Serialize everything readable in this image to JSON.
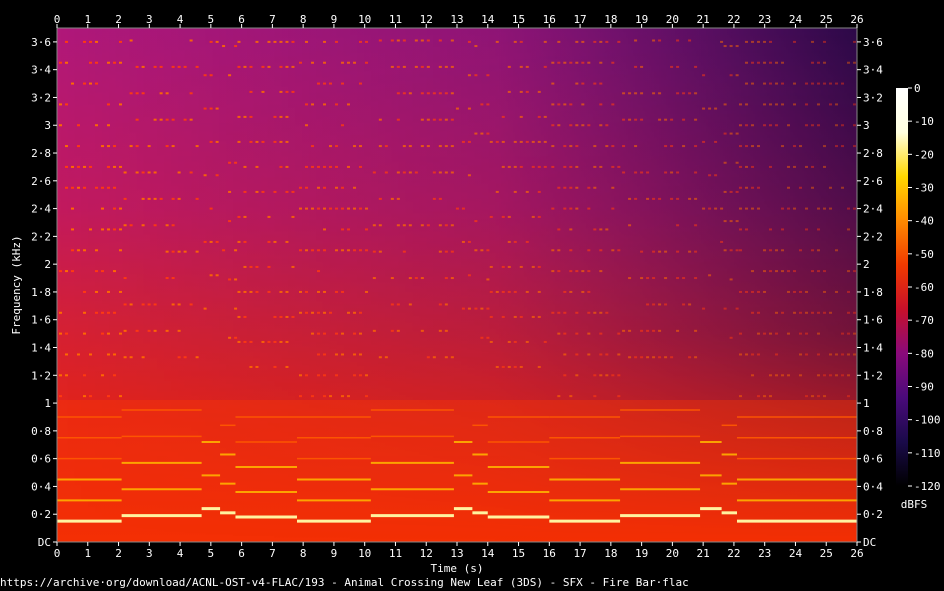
{
  "source_url": "https://archive·org/download/ACNL-OST-v4-FLAC/193 - Animal Crossing New Leaf (3DS) - SFX - Fire Bar·flac",
  "chart_data": {
    "type": "heatmap",
    "xlabel": "Time (s)",
    "ylabel": "Frequency (kHz)",
    "xlim": [
      0,
      26
    ],
    "ylim": [
      0,
      3.7
    ],
    "x_ticks": [
      "0",
      "1",
      "2",
      "3",
      "4",
      "5",
      "6",
      "7",
      "8",
      "9",
      "10",
      "11",
      "12",
      "13",
      "14",
      "15",
      "16",
      "17",
      "18",
      "19",
      "20",
      "21",
      "22",
      "23",
      "24",
      "25",
      "26"
    ],
    "y_ticks": [
      {
        "value": 0,
        "label": "DC"
      },
      {
        "value": 0.2,
        "label": "0·2"
      },
      {
        "value": 0.4,
        "label": "0·4"
      },
      {
        "value": 0.6,
        "label": "0·6"
      },
      {
        "value": 0.8,
        "label": "0·8"
      },
      {
        "value": 1.0,
        "label": "1"
      },
      {
        "value": 1.2,
        "label": "1·2"
      },
      {
        "value": 1.4,
        "label": "1·4"
      },
      {
        "value": 1.6,
        "label": "1·6"
      },
      {
        "value": 1.8,
        "label": "1·8"
      },
      {
        "value": 2.0,
        "label": "2"
      },
      {
        "value": 2.2,
        "label": "2·2"
      },
      {
        "value": 2.4,
        "label": "2·4"
      },
      {
        "value": 2.6,
        "label": "2·6"
      },
      {
        "value": 2.8,
        "label": "2·8"
      },
      {
        "value": 3.0,
        "label": "3"
      },
      {
        "value": 3.2,
        "label": "3·2"
      },
      {
        "value": 3.4,
        "label": "3·4"
      },
      {
        "value": 3.6,
        "label": "3·6"
      }
    ],
    "colorbar": {
      "label": "dBFS",
      "range": [
        -120,
        0
      ],
      "ticks": [
        {
          "value": 0,
          "label": "0"
        },
        {
          "value": -10,
          "label": "-10"
        },
        {
          "value": -20,
          "label": "-20"
        },
        {
          "value": -30,
          "label": "-30"
        },
        {
          "value": -40,
          "label": "-40"
        },
        {
          "value": -50,
          "label": "-50"
        },
        {
          "value": -60,
          "label": "-60"
        },
        {
          "value": -70,
          "label": "-70"
        },
        {
          "value": -80,
          "label": "-80"
        },
        {
          "value": -90,
          "label": "-90"
        },
        {
          "value": -100,
          "label": "-100"
        },
        {
          "value": -110,
          "label": "-110"
        },
        {
          "value": -120,
          "label": "-120"
        }
      ],
      "colormap": [
        "#000000",
        "#1a0a4a",
        "#4a0a7a",
        "#8a0a7a",
        "#c8102a",
        "#f03a00",
        "#ff8a00",
        "#ffd800",
        "#ffffe0",
        "#ffffff"
      ]
    },
    "fundamental_line": {
      "description": "bright stepped tone",
      "segments": [
        {
          "x": [
            0,
            2.1
          ],
          "freq": 0.15
        },
        {
          "x": [
            2.1,
            4.7
          ],
          "freq": 0.19
        },
        {
          "x": [
            4.7,
            5.3
          ],
          "freq": 0.24
        },
        {
          "x": [
            5.3,
            5.8
          ],
          "freq": 0.21
        },
        {
          "x": [
            5.8,
            7.8
          ],
          "freq": 0.18
        },
        {
          "x": [
            7.8,
            10.2
          ],
          "freq": 0.15
        },
        {
          "x": [
            10.2,
            12.9
          ],
          "freq": 0.19
        },
        {
          "x": [
            12.9,
            13.5
          ],
          "freq": 0.24
        },
        {
          "x": [
            13.5,
            14.0
          ],
          "freq": 0.21
        },
        {
          "x": [
            14.0,
            16.0
          ],
          "freq": 0.18
        },
        {
          "x": [
            16.0,
            18.3
          ],
          "freq": 0.15
        },
        {
          "x": [
            18.3,
            20.9
          ],
          "freq": 0.19
        },
        {
          "x": [
            20.9,
            21.6
          ],
          "freq": 0.24
        },
        {
          "x": [
            21.6,
            22.1
          ],
          "freq": 0.21
        },
        {
          "x": [
            22.1,
            26.0
          ],
          "freq": 0.15
        }
      ]
    }
  }
}
